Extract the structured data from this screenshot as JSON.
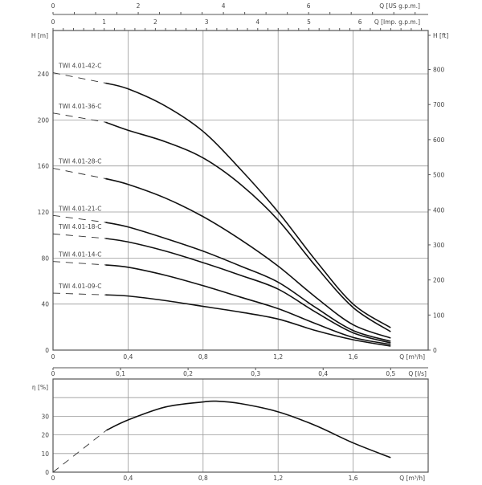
{
  "chart_data": [
    {
      "type": "line",
      "title": "",
      "xlabel": "Q [m³/h]",
      "ylabel": "H [m]",
      "ylabel_right": "H [ft]",
      "xlim": [
        0,
        2.0
      ],
      "ylim": [
        0,
        277.7
      ],
      "grid": true,
      "x_ticks": [
        "0",
        "0,4",
        "0,8",
        "1,2",
        "1,6"
      ],
      "x_tick_values": [
        0,
        0.4,
        0.8,
        1.2,
        1.6
      ],
      "y_ticks": [
        0,
        40,
        80,
        120,
        160,
        200,
        240
      ],
      "y_right_ticks": [
        0,
        100,
        200,
        300,
        400,
        500,
        600,
        700,
        800
      ],
      "top_axes": [
        {
          "label": "Q [US g.p.m.]",
          "ticks": [
            0,
            2,
            4,
            6
          ],
          "minor_step": 0.5,
          "m3h_per_unit": 0.2271
        },
        {
          "label": "Q [Imp. g.p.m.]",
          "ticks": [
            0,
            1,
            2,
            3,
            4,
            5,
            6
          ],
          "minor_step": 0.2,
          "m3h_per_unit": 0.2728
        }
      ],
      "dashed_region": [
        0,
        0.28
      ],
      "x": [
        0,
        0.28,
        0.4,
        0.6,
        0.8,
        1.0,
        1.2,
        1.4,
        1.6,
        1.8
      ],
      "series": [
        {
          "name": "TWI 4.01-42-C",
          "values": [
            241,
            232,
            227,
            212,
            190,
            157,
            120,
            78,
            40,
            19.5
          ]
        },
        {
          "name": "TWI 4.01-36-C",
          "values": [
            206,
            198,
            191,
            181,
            167,
            144,
            113,
            73,
            37,
            16
          ]
        },
        {
          "name": "TWI 4.01-28-C",
          "values": [
            158,
            149,
            144,
            132,
            116,
            96,
            73,
            46,
            22,
            10.5
          ]
        },
        {
          "name": "TWI 4.01-21-C",
          "values": [
            117,
            111,
            107,
            97,
            86,
            73,
            59,
            37,
            17,
            7.7
          ]
        },
        {
          "name": "TWI 4.01-18-C",
          "values": [
            101,
            97,
            94,
            86,
            76,
            65,
            53,
            33,
            15,
            6.3
          ]
        },
        {
          "name": "TWI 4.01-14-C",
          "values": [
            77,
            74,
            72,
            65,
            56,
            46,
            36,
            23,
            11,
            4.9
          ]
        },
        {
          "name": "TWI 4.01-09-C",
          "values": [
            49.5,
            48,
            47,
            43,
            38,
            33,
            27,
            17,
            9,
            3.5
          ]
        }
      ]
    },
    {
      "type": "line",
      "title": "",
      "xlabel": "Q [m³/h]",
      "ylabel": "η [%]",
      "xlim": [
        0,
        2.0
      ],
      "ylim": [
        0,
        50
      ],
      "grid": true,
      "x_ticks": [
        "0",
        "0,4",
        "0,8",
        "1,2",
        "1,6"
      ],
      "x_tick_values": [
        0,
        0.4,
        0.8,
        1.2,
        1.6
      ],
      "y_ticks": [
        0,
        10,
        20,
        30
      ],
      "y_grid": [
        10,
        20,
        30,
        40
      ],
      "top_axis": {
        "label": "Q [l/s]",
        "ticks": [
          "0",
          "0,1",
          "0,2",
          "0,3",
          "0,4",
          "0,5"
        ],
        "tick_values": [
          0,
          0.1,
          0.2,
          0.3,
          0.4,
          0.5
        ],
        "m3h_per_unit": 3.6
      },
      "dashed_region": [
        0,
        0.285
      ],
      "x": [
        0,
        0.285,
        0.4,
        0.6,
        0.8,
        0.87,
        1.0,
        1.2,
        1.4,
        1.6,
        1.8
      ],
      "series": [
        {
          "values": [
            0,
            22.5,
            28,
            35,
            37.7,
            38.1,
            36.8,
            32.4,
            25,
            15.7,
            7.8
          ]
        }
      ]
    }
  ]
}
